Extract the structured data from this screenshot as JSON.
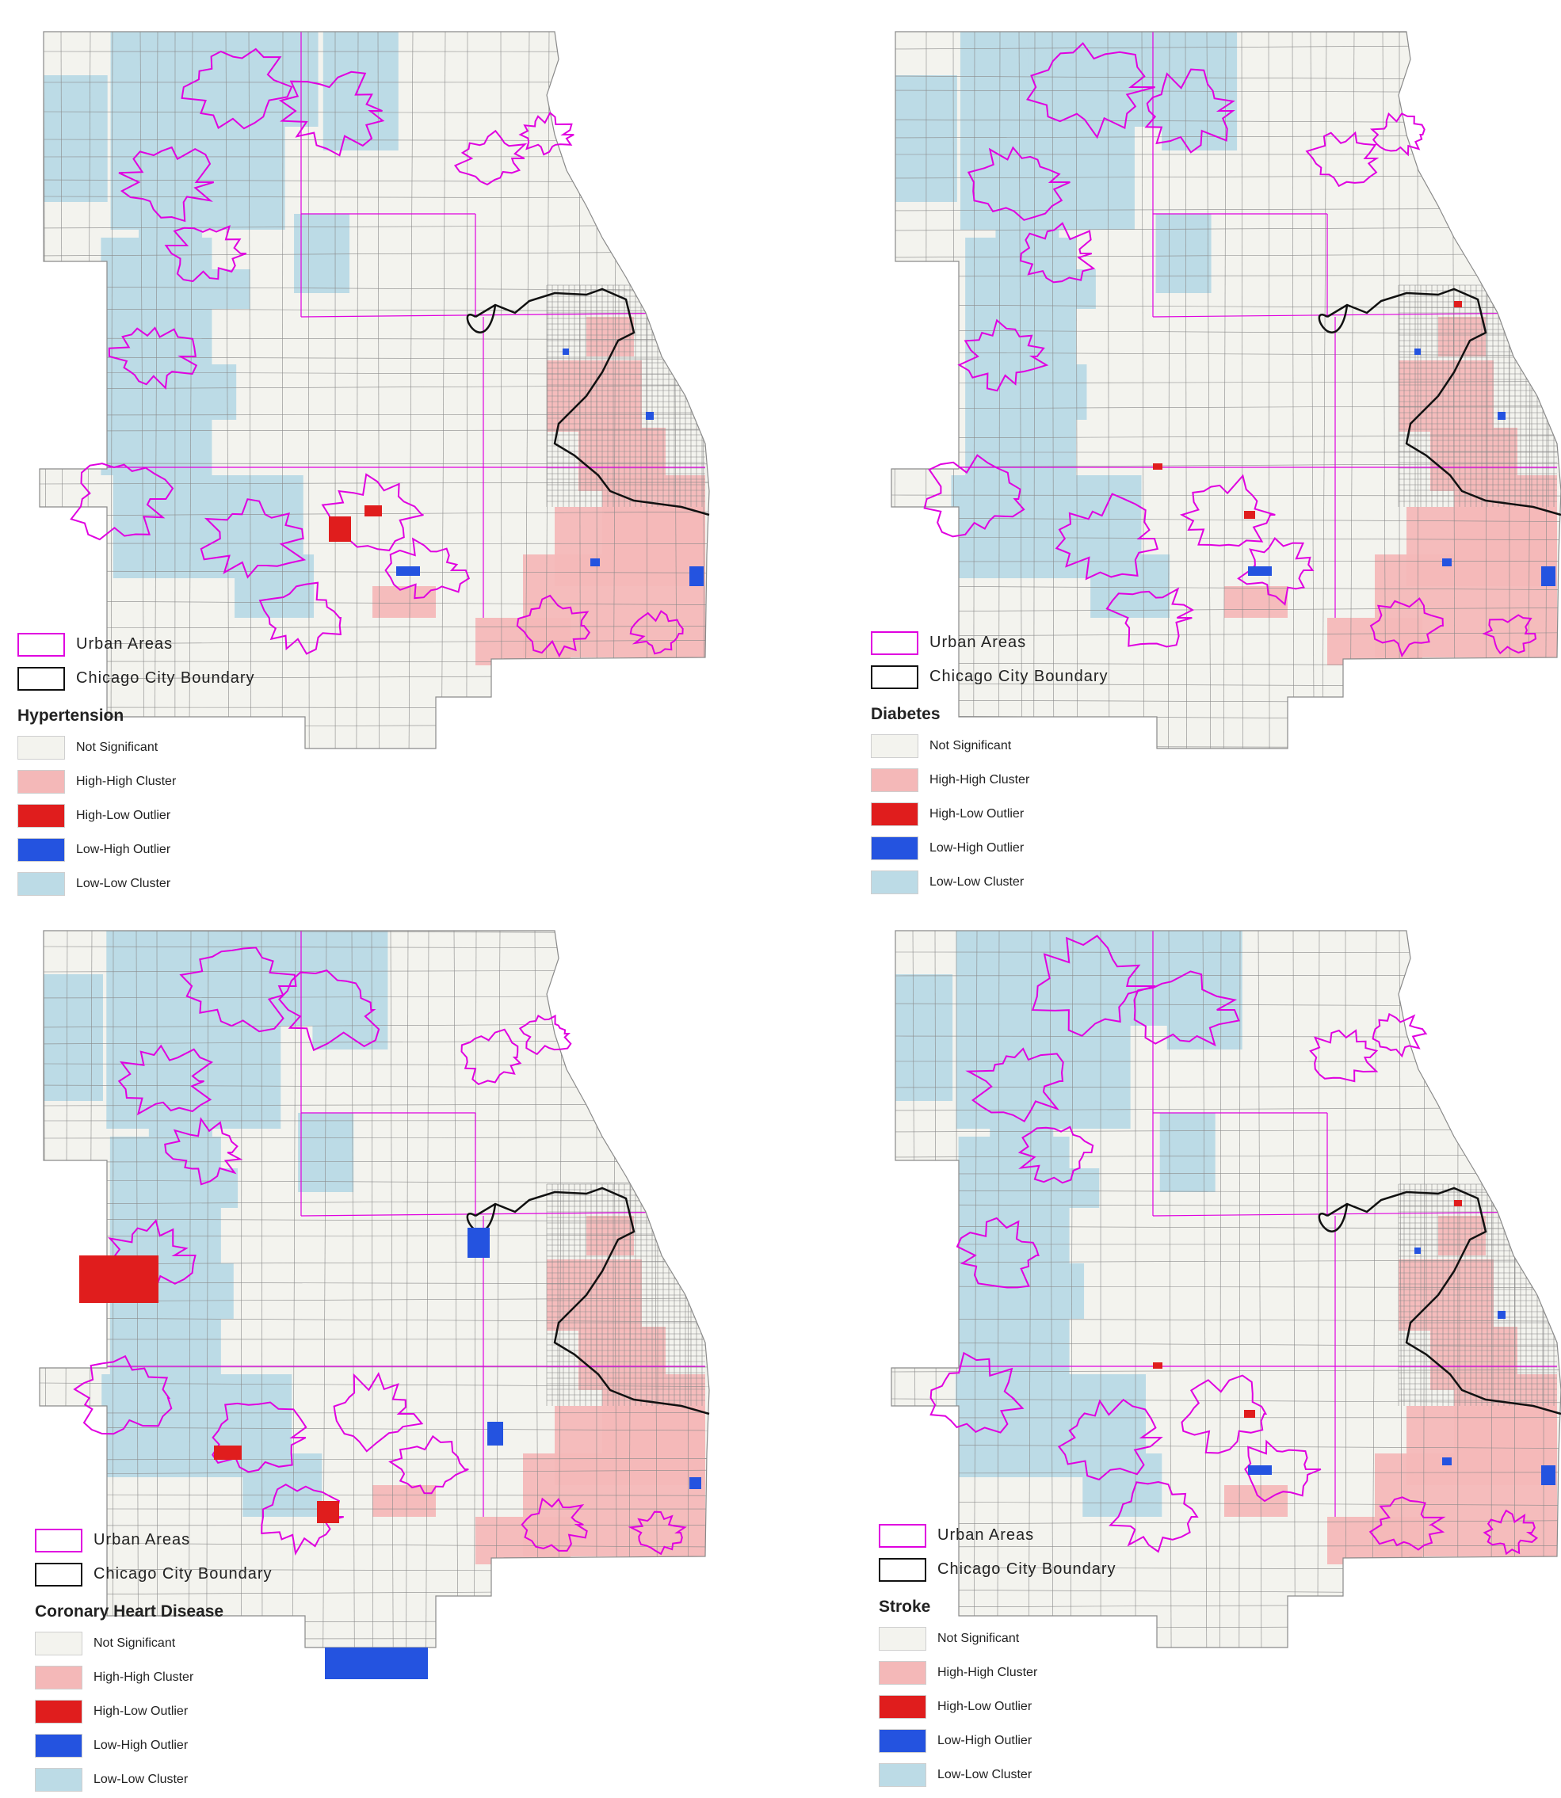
{
  "colors": {
    "not_significant": "#f3f3ee",
    "high_high": "#f4b8b8",
    "high_low": "#e01d1d",
    "low_high": "#2453e0",
    "low_low": "#bcdbe6",
    "urban": "#e000e0",
    "city": "#111111",
    "tract_line": "#8a8a8a"
  },
  "legend_common": {
    "urban_areas": "Urban Areas",
    "city_boundary": "Chicago City Boundary",
    "categories": [
      "Not Significant",
      "High-High Cluster",
      "High-Low Outlier",
      "Low-High Outlier",
      "Low-Low Cluster"
    ]
  },
  "panels": [
    {
      "id": "hypertension",
      "title": "Hypertension"
    },
    {
      "id": "diabetes",
      "title": "Diabetes"
    },
    {
      "id": "chd",
      "title": "Coronary Heart Disease"
    },
    {
      "id": "stroke",
      "title": "Stroke"
    }
  ]
}
